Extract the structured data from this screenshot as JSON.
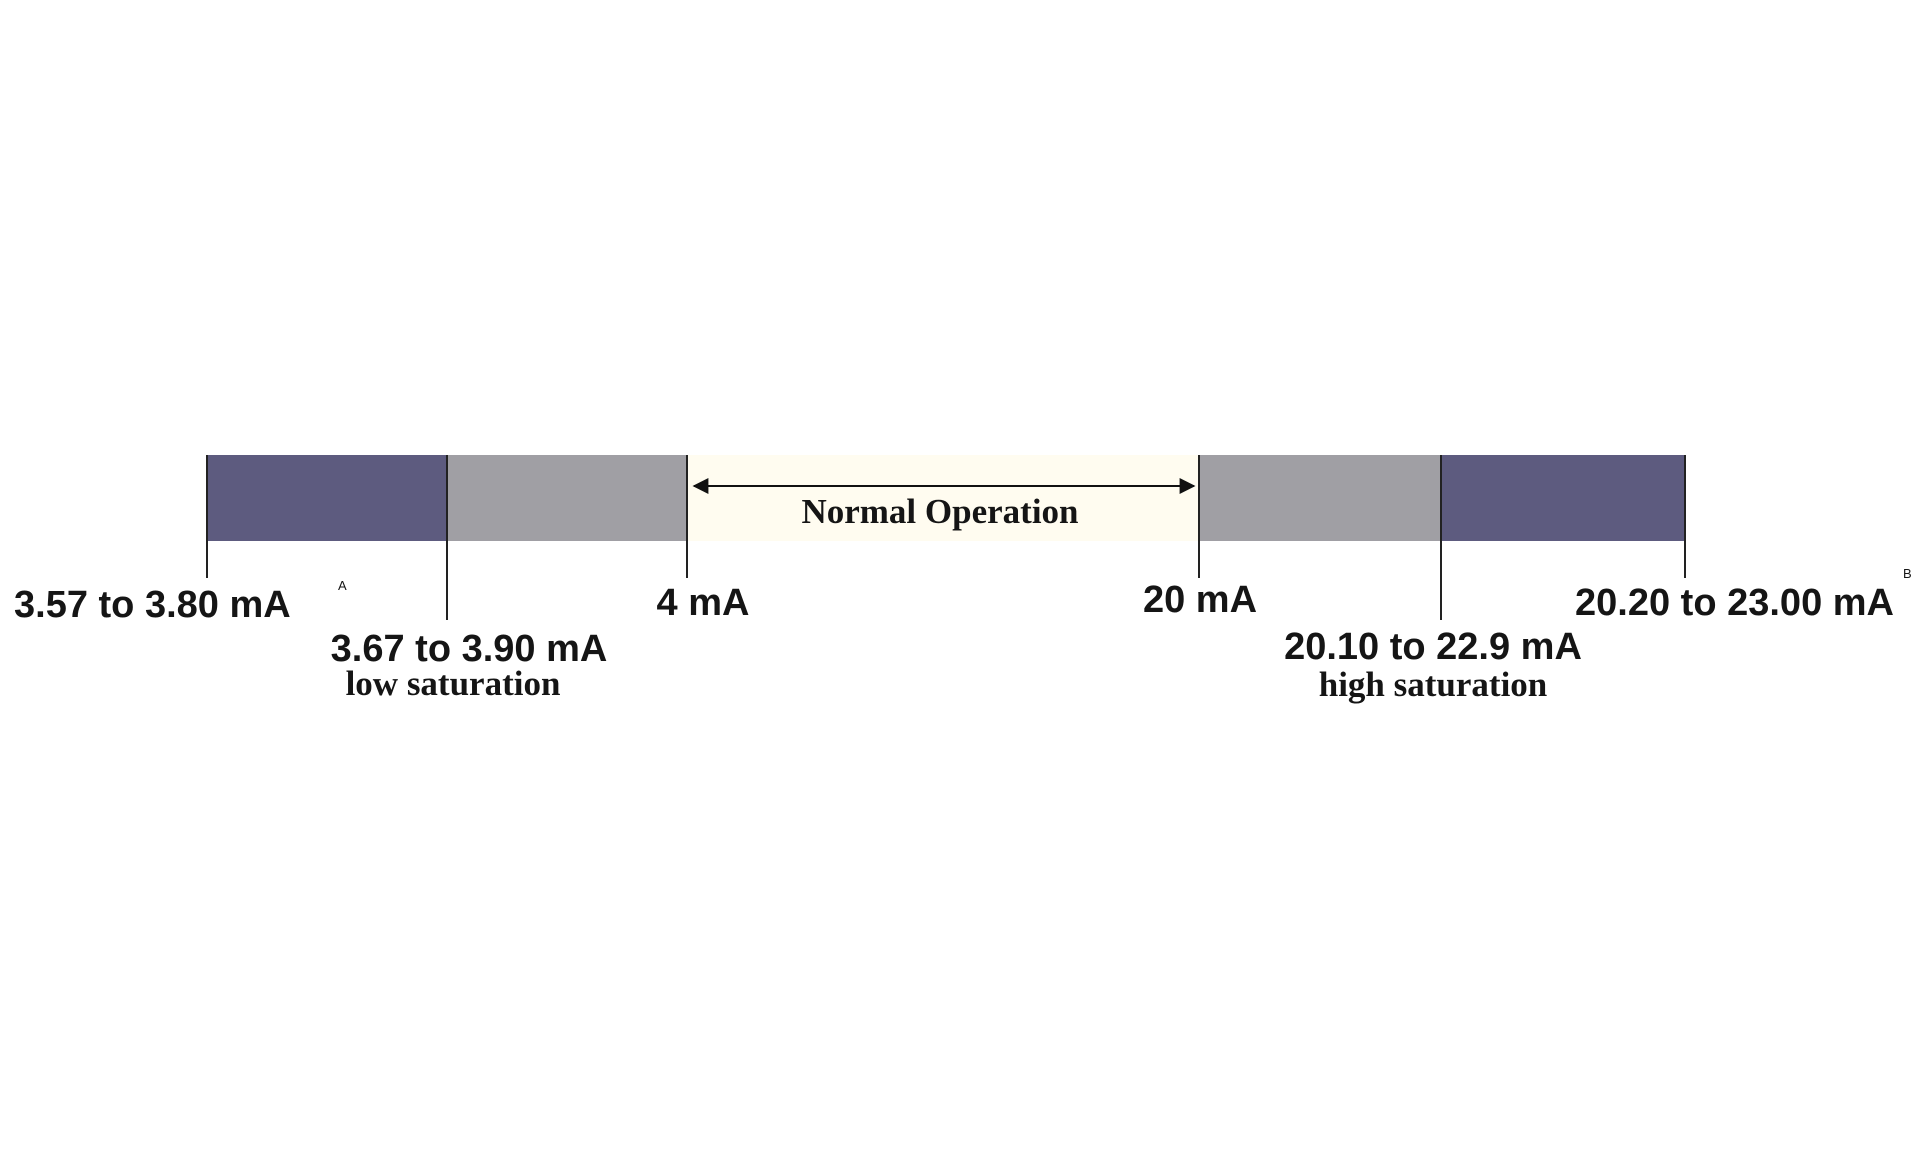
{
  "labels": {
    "low_alarm": {
      "text": "3.57 to 3.80 mA",
      "note": "A"
    },
    "low_saturation": {
      "range": "3.67 to 3.90 mA",
      "caption": "low saturation"
    },
    "low_limit": "4 mA",
    "normal": "Normal Operation",
    "high_limit": "20 mA",
    "high_saturation": {
      "range": "20.10 to 22.9 mA",
      "caption": "high saturation"
    },
    "high_alarm": {
      "text": "20.20 to 23.00 mA",
      "note": "B"
    }
  }
}
